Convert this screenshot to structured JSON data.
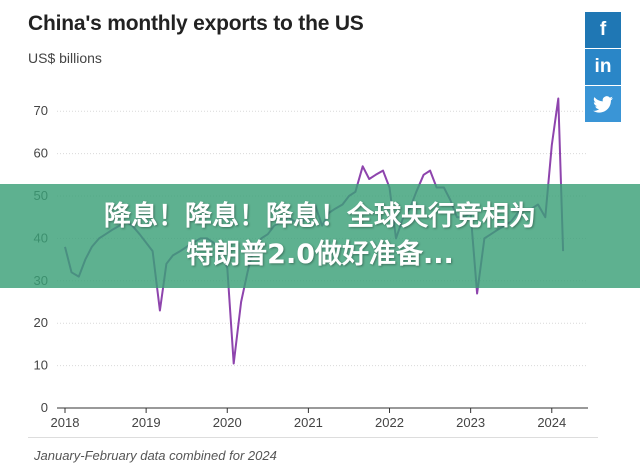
{
  "header": {
    "title": "China's monthly exports to the US",
    "subtitle": "US$ billions"
  },
  "footnote": "January-February data combined for 2024",
  "share": {
    "facebook": "f",
    "linkedin": "in",
    "twitter_icon": "twitter-bird-icon",
    "colors": [
      "#1f77b4",
      "#2a86c7",
      "#3a95d6"
    ]
  },
  "banner": {
    "line1": "降息！降息！降息！全球央行竞相为",
    "line2": "特朗普2.0做好准备..."
  },
  "chart_data": {
    "type": "line",
    "title": "China's monthly exports to the US",
    "ylabel": "US$ billions",
    "x_ticks": [
      "2018",
      "2019",
      "2020",
      "2021",
      "2022",
      "2023",
      "2024"
    ],
    "y_ticks": [
      "0",
      "10",
      "20",
      "30",
      "40",
      "50",
      "60",
      "70"
    ],
    "xlim": [
      2018.0,
      2024.2
    ],
    "ylim": [
      0,
      75
    ],
    "grid": "horizontal",
    "series": [
      {
        "color": "#8e44ad",
        "x": [
          2018.0,
          2018.08,
          2018.17,
          2018.25,
          2018.33,
          2018.42,
          2018.5,
          2018.58,
          2018.67,
          2018.75,
          2018.83,
          2018.92,
          2019.0,
          2019.08,
          2019.17,
          2019.25,
          2019.33,
          2019.42,
          2019.5,
          2019.58,
          2019.67,
          2019.75,
          2019.83,
          2019.92,
          2020.0,
          2020.08,
          2020.17,
          2020.25,
          2020.33,
          2020.42,
          2020.5,
          2020.58,
          2020.67,
          2020.75,
          2020.83,
          2020.92,
          2021.0,
          2021.08,
          2021.17,
          2021.25,
          2021.33,
          2021.42,
          2021.5,
          2021.58,
          2021.67,
          2021.75,
          2021.83,
          2021.92,
          2022.0,
          2022.08,
          2022.17,
          2022.25,
          2022.33,
          2022.42,
          2022.5,
          2022.58,
          2022.67,
          2022.75,
          2022.83,
          2022.92,
          2023.0,
          2023.08,
          2023.17,
          2023.25,
          2023.33,
          2023.42,
          2023.5,
          2023.58,
          2023.67,
          2023.75,
          2023.83,
          2023.92,
          2024.0,
          2024.08,
          2024.14
        ],
        "y": [
          38,
          32,
          31,
          35,
          38,
          40,
          41,
          42,
          43,
          44,
          43,
          41,
          39,
          37,
          23,
          34,
          36,
          37,
          38,
          39,
          40,
          40,
          39,
          37,
          33,
          10.5,
          25,
          32,
          38,
          40,
          41,
          43,
          44,
          45,
          44,
          44,
          45,
          48,
          43,
          46,
          47,
          48,
          50,
          51,
          57,
          54,
          55,
          56,
          52,
          40,
          45,
          47,
          51,
          55,
          56,
          52,
          52,
          49,
          45,
          45,
          46,
          27,
          40,
          41,
          42,
          43,
          44,
          46,
          47,
          47,
          48,
          45,
          62,
          73,
          37
        ]
      }
    ]
  }
}
